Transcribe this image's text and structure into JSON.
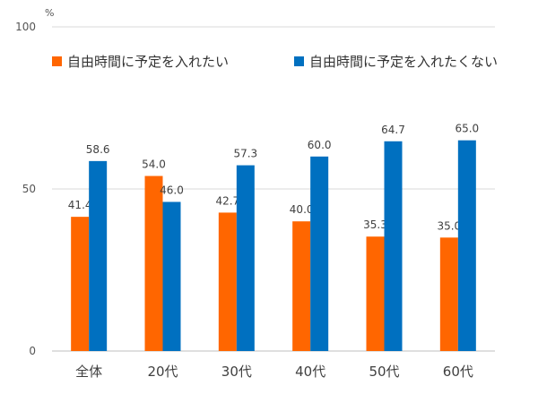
{
  "chart_data": {
    "type": "bar",
    "unit": "%",
    "categories": [
      "全体",
      "20代",
      "30代",
      "40代",
      "50代",
      "60代"
    ],
    "series": [
      {
        "name": "自由時間に予定を入れたい",
        "color": "#ff6600",
        "values": [
          41.4,
          54.0,
          42.7,
          40.0,
          35.3,
          35.0
        ]
      },
      {
        "name": "自由時間に予定を入れたくない",
        "color": "#0070c0",
        "values": [
          58.6,
          46.0,
          57.3,
          60.0,
          64.7,
          65.0
        ]
      }
    ],
    "ylim": [
      0,
      100
    ],
    "yticks": [
      0,
      50,
      100
    ],
    "grid": true,
    "legend_position": "top"
  }
}
